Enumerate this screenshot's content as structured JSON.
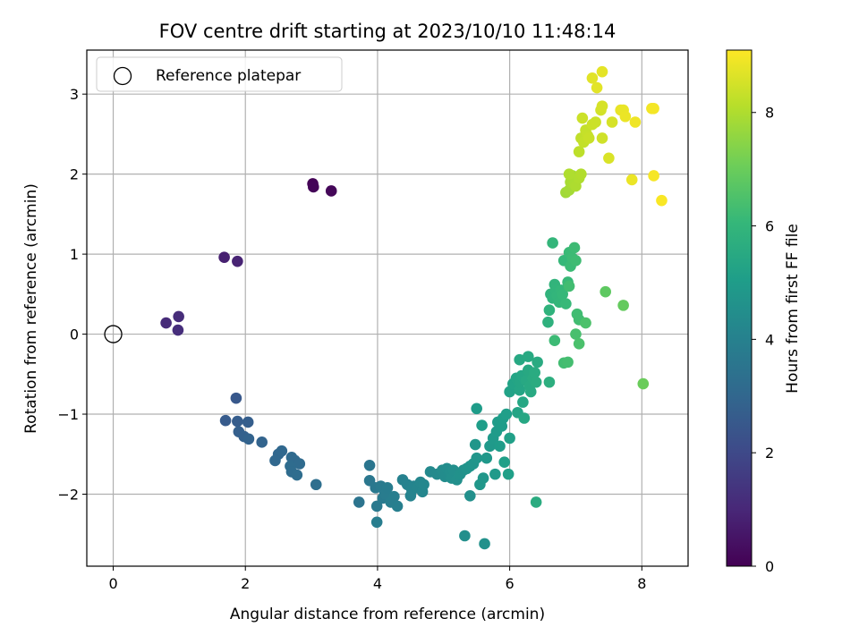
{
  "chart_data": {
    "type": "scatter",
    "title": "FOV centre drift starting at 2023/10/10 11:48:14",
    "xlabel": "Angular distance from reference (arcmin)",
    "ylabel": "Rotation from reference (arcmin)",
    "xlim": [
      -0.4,
      8.7
    ],
    "ylim": [
      -2.9,
      3.55
    ],
    "xticks": [
      0,
      2,
      4,
      6,
      8
    ],
    "xtick_labels": [
      "0",
      "2",
      "4",
      "6",
      "8"
    ],
    "yticks": [
      -2,
      -1,
      0,
      1,
      2,
      3
    ],
    "ytick_labels": [
      "−2",
      "−1",
      "0",
      "1",
      "2",
      "3"
    ],
    "grid": true,
    "legend": {
      "placement": "top-left",
      "entries": [
        {
          "label": "Reference platepar",
          "marker": "open-circle"
        }
      ]
    },
    "colorbar": {
      "label": "Hours from first FF file",
      "colormap": "viridis",
      "range": [
        0,
        9.1
      ],
      "ticks": [
        0,
        2,
        4,
        6,
        8
      ],
      "tick_labels": [
        "0",
        "2",
        "4",
        "6",
        "8"
      ]
    },
    "reference_point": {
      "x": 0,
      "y": 0
    },
    "columns": [
      "x",
      "y",
      "hours"
    ],
    "points": [
      [
        3.02,
        1.88,
        0.05
      ],
      [
        3.03,
        1.84,
        0.1
      ],
      [
        3.3,
        1.79,
        0.15
      ],
      [
        1.68,
        0.96,
        0.8
      ],
      [
        1.88,
        0.91,
        0.9
      ],
      [
        0.8,
        0.14,
        1.1
      ],
      [
        0.98,
        0.05,
        1.2
      ],
      [
        0.99,
        0.22,
        1.15
      ],
      [
        1.86,
        -0.8,
        2.5
      ],
      [
        1.7,
        -1.08,
        2.6
      ],
      [
        1.88,
        -1.09,
        2.65
      ],
      [
        2.04,
        -1.1,
        2.7
      ],
      [
        1.9,
        -1.22,
        2.75
      ],
      [
        1.98,
        -1.28,
        2.8
      ],
      [
        2.05,
        -1.31,
        2.85
      ],
      [
        2.25,
        -1.35,
        2.9
      ],
      [
        2.5,
        -1.5,
        3.0
      ],
      [
        2.55,
        -1.46,
        3.05
      ],
      [
        2.45,
        -1.58,
        3.05
      ],
      [
        2.7,
        -1.54,
        3.1
      ],
      [
        2.75,
        -1.58,
        3.12
      ],
      [
        2.82,
        -1.62,
        3.15
      ],
      [
        2.68,
        -1.65,
        3.18
      ],
      [
        2.7,
        -1.72,
        3.2
      ],
      [
        2.78,
        -1.76,
        3.22
      ],
      [
        3.07,
        -1.88,
        3.3
      ],
      [
        3.72,
        -2.1,
        3.5
      ],
      [
        3.88,
        -1.64,
        3.55
      ],
      [
        3.88,
        -1.83,
        3.6
      ],
      [
        3.97,
        -1.92,
        3.65
      ],
      [
        3.99,
        -2.15,
        3.7
      ],
      [
        4.05,
        -1.9,
        3.72
      ],
      [
        4.08,
        -2.05,
        3.75
      ],
      [
        4.1,
        -1.95,
        3.78
      ],
      [
        4.12,
        -2.0,
        3.8
      ],
      [
        4.15,
        -1.92,
        3.82
      ],
      [
        3.99,
        -2.35,
        3.85
      ],
      [
        4.2,
        -2.1,
        3.88
      ],
      [
        4.25,
        -2.03,
        3.9
      ],
      [
        4.3,
        -2.15,
        3.92
      ],
      [
        4.38,
        -1.82,
        4.0
      ],
      [
        4.45,
        -1.88,
        4.05
      ],
      [
        4.5,
        -2.02,
        4.08
      ],
      [
        4.52,
        -1.95,
        4.1
      ],
      [
        4.55,
        -1.9,
        4.12
      ],
      [
        4.6,
        -1.92,
        4.15
      ],
      [
        4.65,
        -1.85,
        4.18
      ],
      [
        4.68,
        -1.97,
        4.2
      ],
      [
        4.7,
        -1.88,
        4.22
      ],
      [
        4.8,
        -1.72,
        4.3
      ],
      [
        4.9,
        -1.75,
        4.35
      ],
      [
        4.98,
        -1.7,
        4.4
      ],
      [
        5.02,
        -1.78,
        4.42
      ],
      [
        5.05,
        -1.68,
        4.45
      ],
      [
        5.1,
        -1.72,
        4.48
      ],
      [
        5.12,
        -1.8,
        4.5
      ],
      [
        5.15,
        -1.7,
        4.52
      ],
      [
        5.2,
        -1.82,
        4.55
      ],
      [
        5.25,
        -1.75,
        4.58
      ],
      [
        5.3,
        -1.7,
        4.6
      ],
      [
        5.32,
        -2.52,
        4.5
      ],
      [
        5.4,
        -2.02,
        4.55
      ],
      [
        5.62,
        -2.62,
        4.6
      ],
      [
        5.35,
        -1.68,
        4.65
      ],
      [
        5.4,
        -1.65,
        4.7
      ],
      [
        5.45,
        -1.62,
        4.72
      ],
      [
        5.5,
        -1.55,
        4.75
      ],
      [
        5.48,
        -1.38,
        4.78
      ],
      [
        5.55,
        -1.88,
        4.8
      ],
      [
        5.6,
        -1.8,
        4.82
      ],
      [
        5.65,
        -1.55,
        4.85
      ],
      [
        5.7,
        -1.4,
        4.88
      ],
      [
        5.75,
        -1.3,
        4.9
      ],
      [
        5.78,
        -1.75,
        4.92
      ],
      [
        5.8,
        -1.22,
        4.95
      ],
      [
        5.82,
        -1.1,
        4.97
      ],
      [
        5.85,
        -1.4,
        5.0
      ],
      [
        5.88,
        -1.15,
        5.02
      ],
      [
        5.9,
        -1.05,
        5.05
      ],
      [
        5.95,
        -1.0,
        5.08
      ],
      [
        5.92,
        -1.6,
        5.1
      ],
      [
        5.98,
        -1.75,
        5.12
      ],
      [
        6.0,
        -1.3,
        5.15
      ],
      [
        5.5,
        -0.93,
        5.0
      ],
      [
        5.58,
        -1.14,
        5.05
      ],
      [
        6.0,
        -0.72,
        5.2
      ],
      [
        6.05,
        -0.62,
        5.25
      ],
      [
        6.1,
        -0.55,
        5.28
      ],
      [
        6.12,
        -0.98,
        5.3
      ],
      [
        6.15,
        -0.7,
        5.32
      ],
      [
        6.15,
        -0.6,
        5.35
      ],
      [
        6.18,
        -0.52,
        5.38
      ],
      [
        6.2,
        -0.85,
        5.4
      ],
      [
        6.22,
        -1.05,
        5.42
      ],
      [
        6.25,
        -0.58,
        5.45
      ],
      [
        6.28,
        -0.45,
        5.48
      ],
      [
        6.3,
        -0.65,
        5.5
      ],
      [
        6.32,
        -0.72,
        5.52
      ],
      [
        6.35,
        -0.55,
        5.55
      ],
      [
        6.38,
        -0.48,
        5.58
      ],
      [
        6.4,
        -0.6,
        5.6
      ],
      [
        6.15,
        -0.32,
        5.45
      ],
      [
        6.28,
        -0.28,
        5.5
      ],
      [
        6.42,
        -0.35,
        5.55
      ],
      [
        6.6,
        -0.6,
        5.7
      ],
      [
        6.4,
        -2.1,
        5.6
      ],
      [
        6.58,
        0.15,
        5.8
      ],
      [
        6.6,
        0.3,
        5.85
      ],
      [
        6.62,
        0.5,
        5.88
      ],
      [
        6.65,
        0.45,
        5.9
      ],
      [
        6.68,
        0.62,
        5.92
      ],
      [
        6.7,
        0.55,
        5.95
      ],
      [
        6.72,
        0.48,
        5.97
      ],
      [
        6.75,
        0.4,
        6.0
      ],
      [
        6.78,
        0.55,
        6.02
      ],
      [
        6.8,
        0.5,
        6.05
      ],
      [
        6.82,
        0.92,
        6.08
      ],
      [
        6.85,
        0.38,
        6.1
      ],
      [
        6.88,
        0.65,
        6.12
      ],
      [
        6.9,
        1.02,
        6.15
      ],
      [
        6.92,
        0.85,
        6.18
      ],
      [
        6.95,
        0.95,
        6.2
      ],
      [
        6.98,
        1.08,
        6.22
      ],
      [
        7.0,
        0.92,
        6.25
      ],
      [
        7.02,
        0.25,
        6.28
      ],
      [
        7.05,
        0.18,
        6.3
      ],
      [
        6.65,
        1.14,
        6.0
      ],
      [
        6.68,
        -0.08,
        6.2
      ],
      [
        6.82,
        -0.36,
        6.3
      ],
      [
        6.88,
        -0.35,
        6.35
      ],
      [
        7.0,
        0.0,
        6.4
      ],
      [
        7.05,
        -0.12,
        6.45
      ],
      [
        7.15,
        0.14,
        6.5
      ],
      [
        6.9,
        0.6,
        6.3
      ],
      [
        7.45,
        0.53,
        6.8
      ],
      [
        7.72,
        0.36,
        6.9
      ],
      [
        8.02,
        -0.62,
        7.0
      ],
      [
        6.85,
        1.77,
        7.8
      ],
      [
        6.9,
        1.8,
        7.85
      ],
      [
        6.92,
        1.9,
        7.9
      ],
      [
        6.95,
        1.98,
        7.92
      ],
      [
        6.98,
        1.88,
        7.95
      ],
      [
        7.0,
        1.85,
        7.97
      ],
      [
        7.05,
        1.95,
        8.0
      ],
      [
        7.08,
        2.0,
        8.05
      ],
      [
        6.9,
        2.0,
        8.0
      ],
      [
        7.05,
        2.28,
        8.2
      ],
      [
        7.08,
        2.45,
        8.25
      ],
      [
        7.12,
        2.4,
        8.28
      ],
      [
        7.15,
        2.55,
        8.3
      ],
      [
        7.18,
        2.48,
        8.32
      ],
      [
        7.2,
        2.45,
        8.35
      ],
      [
        7.25,
        2.62,
        8.38
      ],
      [
        7.3,
        2.65,
        8.4
      ],
      [
        7.1,
        2.7,
        8.4
      ],
      [
        7.4,
        2.45,
        8.45
      ],
      [
        7.38,
        2.8,
        8.5
      ],
      [
        7.4,
        2.85,
        8.55
      ],
      [
        7.55,
        2.65,
        8.55
      ],
      [
        7.5,
        2.2,
        8.6
      ],
      [
        7.25,
        3.2,
        8.7
      ],
      [
        7.32,
        3.08,
        8.72
      ],
      [
        7.4,
        3.28,
        8.75
      ],
      [
        7.68,
        2.8,
        8.8
      ],
      [
        7.72,
        2.8,
        8.82
      ],
      [
        7.75,
        2.72,
        8.85
      ],
      [
        7.85,
        1.93,
        8.85
      ],
      [
        7.9,
        2.65,
        8.9
      ],
      [
        8.15,
        2.82,
        8.95
      ],
      [
        8.18,
        2.82,
        8.97
      ],
      [
        8.18,
        1.98,
        9.0
      ],
      [
        8.3,
        1.67,
        9.05
      ]
    ]
  }
}
